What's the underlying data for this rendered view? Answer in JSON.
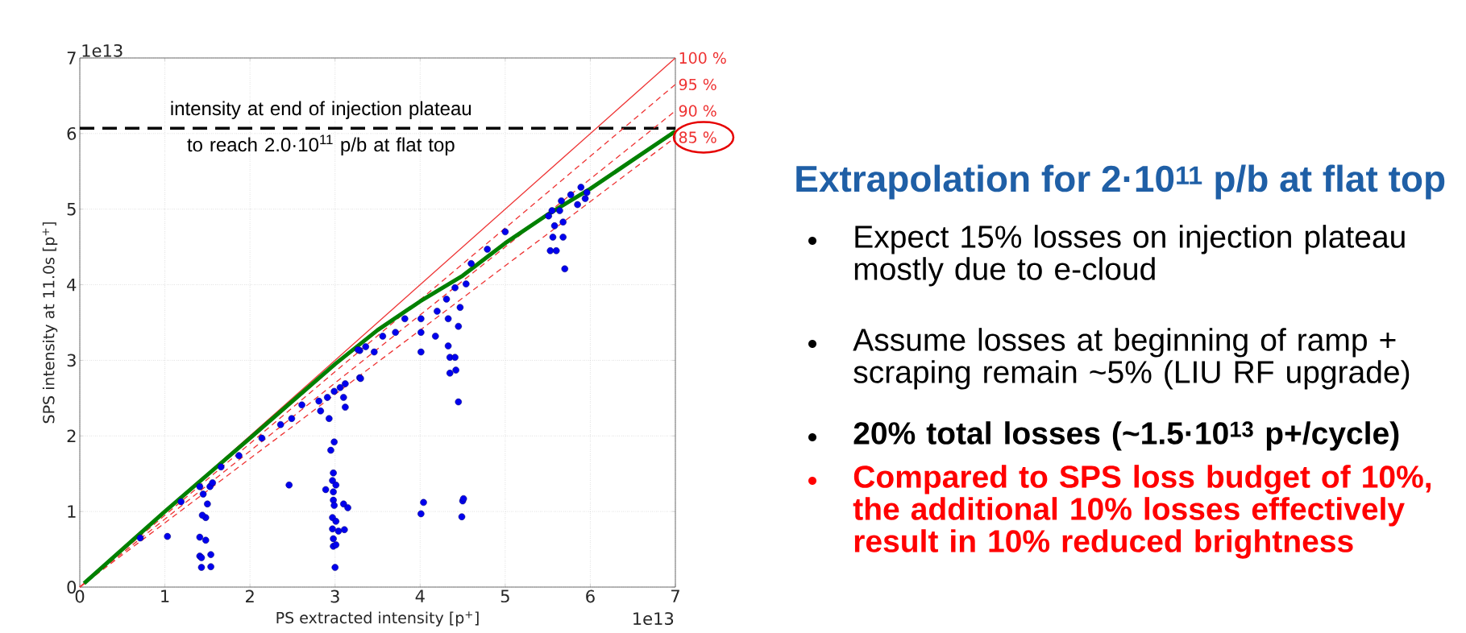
{
  "chart_data": {
    "type": "scatter",
    "title": "Extrapolation for 2·10$^{11}$ p/b at flat top",
    "xlabel": "PS extracted intensity [p$^{+}$]",
    "ylabel": "SPS intensity at 11.0s [p$^{+}$]",
    "xlim": [
      0,
      7
    ],
    "ylim": [
      0,
      7
    ],
    "xticks": [
      0,
      1,
      2,
      3,
      4,
      5,
      6,
      7
    ],
    "yticks": [
      0,
      1,
      2,
      3,
      4,
      5,
      6,
      7
    ],
    "grid": true,
    "ref_lines": [
      {
        "axis": "y",
        "value": 6.07,
        "label": "intensity at end of injection plateau to reach 2.0·10$^{11}$ p/b at flat top",
        "color": "#000000",
        "line_style": "dashed"
      }
    ],
    "annotations": [
      "1e13",
      "1e13",
      "Expect 15% losses on injection plateau mostly due to e-cloud",
      "Assume losses at beginning of ramp + scraping remain ~5% (LIU RF upgrade)",
      "20% total losses (~1.5·10$^{13}$ p+/cycle)",
      "Compared to SPS loss budget of 10%, the additional 10% losses effectively result in 10% reduced brightness"
    ],
    "series": [
      {
        "type": "line",
        "name": "100 %",
        "color": "#ee3333",
        "line_style": "solid",
        "x": [
          0,
          7
        ],
        "values": [
          0,
          7
        ]
      },
      {
        "type": "line",
        "name": "95 %",
        "color": "#ee3333",
        "line_style": "dashed",
        "x": [
          0,
          7
        ],
        "values": [
          0,
          6.65
        ]
      },
      {
        "type": "line",
        "name": "90 %",
        "color": "#ee3333",
        "line_style": "dashed",
        "x": [
          0,
          7
        ],
        "values": [
          0,
          6.3
        ]
      },
      {
        "type": "line",
        "name": "85 %",
        "color": "#ee3333",
        "line_style": "dashed",
        "x": [
          0,
          7
        ],
        "values": [
          0,
          5.95
        ]
      },
      {
        "color": "#0000ee",
        "marker": "circle",
        "x": [
          1.03,
          0.71,
          1.43,
          1.54,
          1.41,
          1.43,
          1.54,
          1.41,
          1.48,
          1.48,
          1.44,
          1.5,
          1.45,
          1.53,
          1.56,
          1.41,
          1.19,
          1.66,
          1.87,
          2.14,
          2.36,
          2.49,
          2.61,
          2.46,
          2.81,
          2.83,
          2.93,
          2.95,
          2.99,
          2.89,
          2.98,
          2.97,
          3.01,
          2.98,
          2.98,
          2.99,
          2.97,
          3.01,
          2.97,
          3.04,
          2.98,
          2.98,
          3.01,
          3.0,
          3.11,
          3.1,
          3.15,
          2.91,
          2.99,
          3.06,
          3.12,
          3.12,
          3.1,
          3.29,
          3.29,
          3.36,
          3.27,
          3.46,
          3.3,
          3.56,
          3.71,
          3.82,
          4.01,
          4.01,
          4.01,
          4.18,
          4.2,
          4.31,
          4.41,
          4.54,
          4.33,
          4.33,
          4.35,
          4.41,
          4.35,
          4.42,
          4.45,
          4.45,
          4.47,
          4.01,
          4.04,
          4.5,
          4.51,
          4.49,
          4.6,
          4.79,
          5.0,
          5.53,
          5.6,
          5.56,
          5.58,
          5.51,
          5.64,
          5.68,
          5.68,
          5.7,
          5.66,
          5.77,
          5.89,
          5.85,
          5.96,
          5.94,
          5.55
        ],
        "values": [
          0.67,
          0.65,
          0.26,
          0.27,
          0.41,
          0.39,
          0.43,
          0.66,
          0.62,
          0.92,
          0.95,
          1.1,
          1.23,
          1.33,
          1.38,
          1.33,
          1.13,
          1.59,
          1.74,
          1.97,
          2.15,
          2.23,
          2.41,
          1.35,
          2.46,
          2.33,
          2.23,
          1.81,
          1.92,
          1.29,
          1.51,
          1.41,
          1.35,
          1.26,
          1.15,
          1.08,
          0.92,
          0.87,
          0.77,
          0.74,
          0.64,
          0.54,
          0.56,
          0.26,
          0.76,
          1.1,
          1.05,
          2.51,
          2.59,
          2.64,
          2.69,
          2.38,
          2.51,
          2.77,
          3.13,
          3.18,
          3.14,
          3.11,
          2.76,
          3.32,
          3.37,
          3.55,
          3.55,
          3.11,
          3.37,
          3.32,
          3.65,
          3.81,
          3.96,
          4.01,
          3.55,
          3.19,
          3.04,
          3.04,
          2.83,
          2.87,
          2.45,
          3.45,
          3.7,
          0.97,
          1.12,
          1.14,
          1.17,
          0.93,
          4.28,
          4.47,
          4.7,
          4.45,
          4.45,
          4.63,
          4.78,
          4.91,
          4.98,
          4.83,
          4.63,
          4.21,
          5.11,
          5.19,
          5.29,
          5.06,
          5.22,
          5.14,
          4.98
        ]
      },
      {
        "type": "line",
        "color": "#008000",
        "line_style": "solid",
        "x": [
          0.05,
          1,
          2,
          3,
          3.5,
          4,
          4.5,
          5,
          5.5,
          6,
          6.5,
          7
        ],
        "values": [
          0.05,
          1.0,
          1.97,
          2.95,
          3.4,
          3.78,
          4.12,
          4.55,
          4.93,
          5.27,
          5.65,
          6.03
        ]
      }
    ]
  }
}
